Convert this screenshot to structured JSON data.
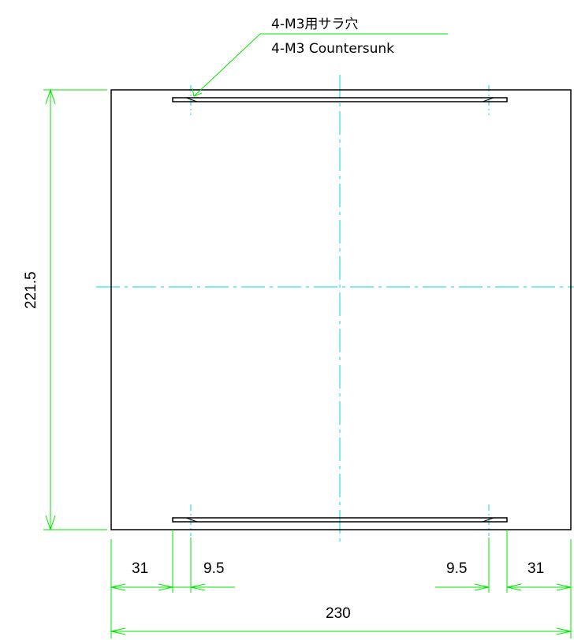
{
  "note": {
    "line1": "4-M3用サラ穴",
    "line2": "4-M3 Countersunk"
  },
  "dimensions": {
    "height": "221.5",
    "left_offset": "31",
    "left_hole_offset": "9.5",
    "right_hole_offset": "9.5",
    "right_offset": "31",
    "width": "230"
  },
  "colors": {
    "outline": "#000000",
    "dimension": "#00e600",
    "centerline": "#00d8d8"
  }
}
